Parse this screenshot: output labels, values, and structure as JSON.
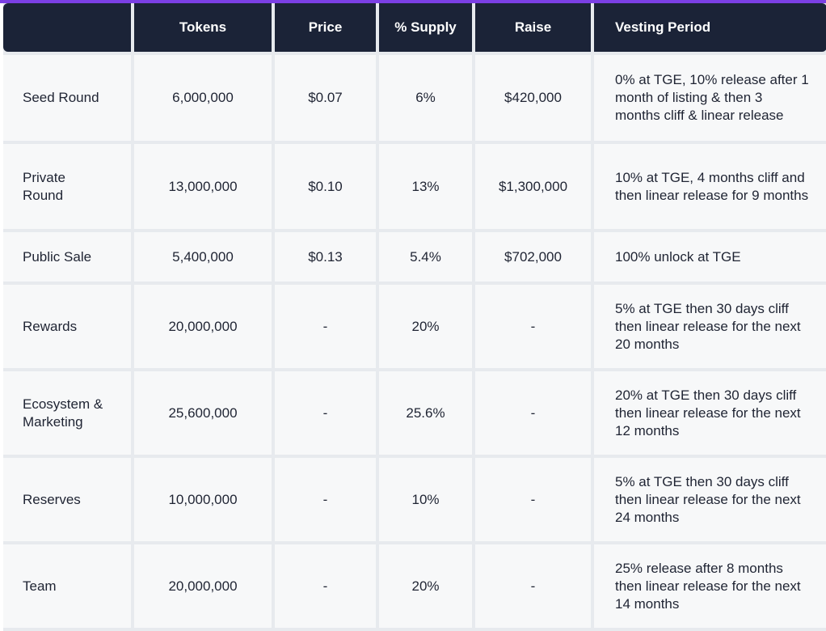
{
  "accent_color": "#7b3fe4",
  "header_color": "#1b2337",
  "headers": [
    "",
    "Tokens",
    "Price",
    "% Supply",
    "Raise",
    "Vesting Period"
  ],
  "rows": [
    {
      "name": "Seed Round",
      "tokens": "6,000,000",
      "price": "$0.07",
      "supply": "6%",
      "raise": "$420,000",
      "vesting": "0% at TGE, 10% release after 1 month of listing & then 3 months cliff & linear release"
    },
    {
      "name": "Private Round",
      "tokens": "13,000,000",
      "price": "$0.10",
      "supply": "13%",
      "raise": "$1,300,000",
      "vesting": "10% at TGE, 4 months cliff and then linear release for 9 months"
    },
    {
      "name": "Public Sale",
      "tokens": "5,400,000",
      "price": "$0.13",
      "supply": "5.4%",
      "raise": "$702,000",
      "vesting": "100% unlock at TGE"
    },
    {
      "name": "Rewards",
      "tokens": "20,000,000",
      "price": "-",
      "supply": "20%",
      "raise": "-",
      "vesting": "5% at TGE then 30 days cliff then linear release for the next 20 months"
    },
    {
      "name": "Ecosystem & Marketing",
      "tokens": "25,600,000",
      "price": "-",
      "supply": "25.6%",
      "raise": "-",
      "vesting": "20% at TGE then 30 days cliff then linear release for the next 12 months"
    },
    {
      "name": "Reserves",
      "tokens": "10,000,000",
      "price": "-",
      "supply": "10%",
      "raise": "-",
      "vesting": "5% at TGE then 30 days cliff then linear release for the next 24 months"
    },
    {
      "name": "Team",
      "tokens": "20,000,000",
      "price": "-",
      "supply": "20%",
      "raise": "-",
      "vesting": "25% release after 8 months then linear release for the next 14 months"
    }
  ]
}
